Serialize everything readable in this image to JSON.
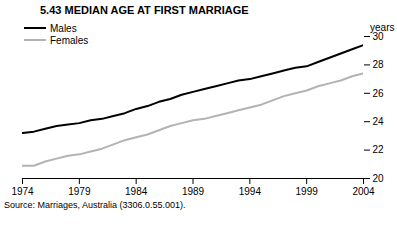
{
  "chart_data": {
    "type": "line",
    "title": "5.43   MEDIAN AGE AT FIRST MARRIAGE",
    "y_label": "years",
    "caption": "Source: Marriages, Australia (3306.0.55.001).",
    "x": [
      1974,
      1975,
      1976,
      1977,
      1978,
      1979,
      1980,
      1981,
      1982,
      1983,
      1984,
      1985,
      1986,
      1987,
      1988,
      1989,
      1990,
      1991,
      1992,
      1993,
      1994,
      1995,
      1996,
      1997,
      1998,
      1999,
      2000,
      2001,
      2002,
      2003,
      2004
    ],
    "series": [
      {
        "name": "Males",
        "color": "#000000",
        "values": [
          23.2,
          23.3,
          23.5,
          23.7,
          23.8,
          23.9,
          24.1,
          24.2,
          24.4,
          24.6,
          24.9,
          25.1,
          25.4,
          25.6,
          25.9,
          26.1,
          26.3,
          26.5,
          26.7,
          26.9,
          27.0,
          27.2,
          27.4,
          27.6,
          27.8,
          27.9,
          28.2,
          28.5,
          28.8,
          29.1,
          29.4
        ]
      },
      {
        "name": "Females",
        "color": "#b3b3b3",
        "values": [
          20.9,
          20.9,
          21.2,
          21.4,
          21.6,
          21.7,
          21.9,
          22.1,
          22.4,
          22.7,
          22.9,
          23.1,
          23.4,
          23.7,
          23.9,
          24.1,
          24.2,
          24.4,
          24.6,
          24.8,
          25.0,
          25.2,
          25.5,
          25.8,
          26.0,
          26.2,
          26.5,
          26.7,
          26.9,
          27.2,
          27.4
        ]
      }
    ],
    "xlim": [
      1974,
      2004
    ],
    "xticks": [
      1974,
      1979,
      1984,
      1989,
      1994,
      1999,
      2004
    ],
    "ylim": [
      20,
      30
    ],
    "yticks": [
      20,
      22,
      24,
      26,
      28,
      30
    ],
    "legend": "top-left",
    "grid": false
  }
}
